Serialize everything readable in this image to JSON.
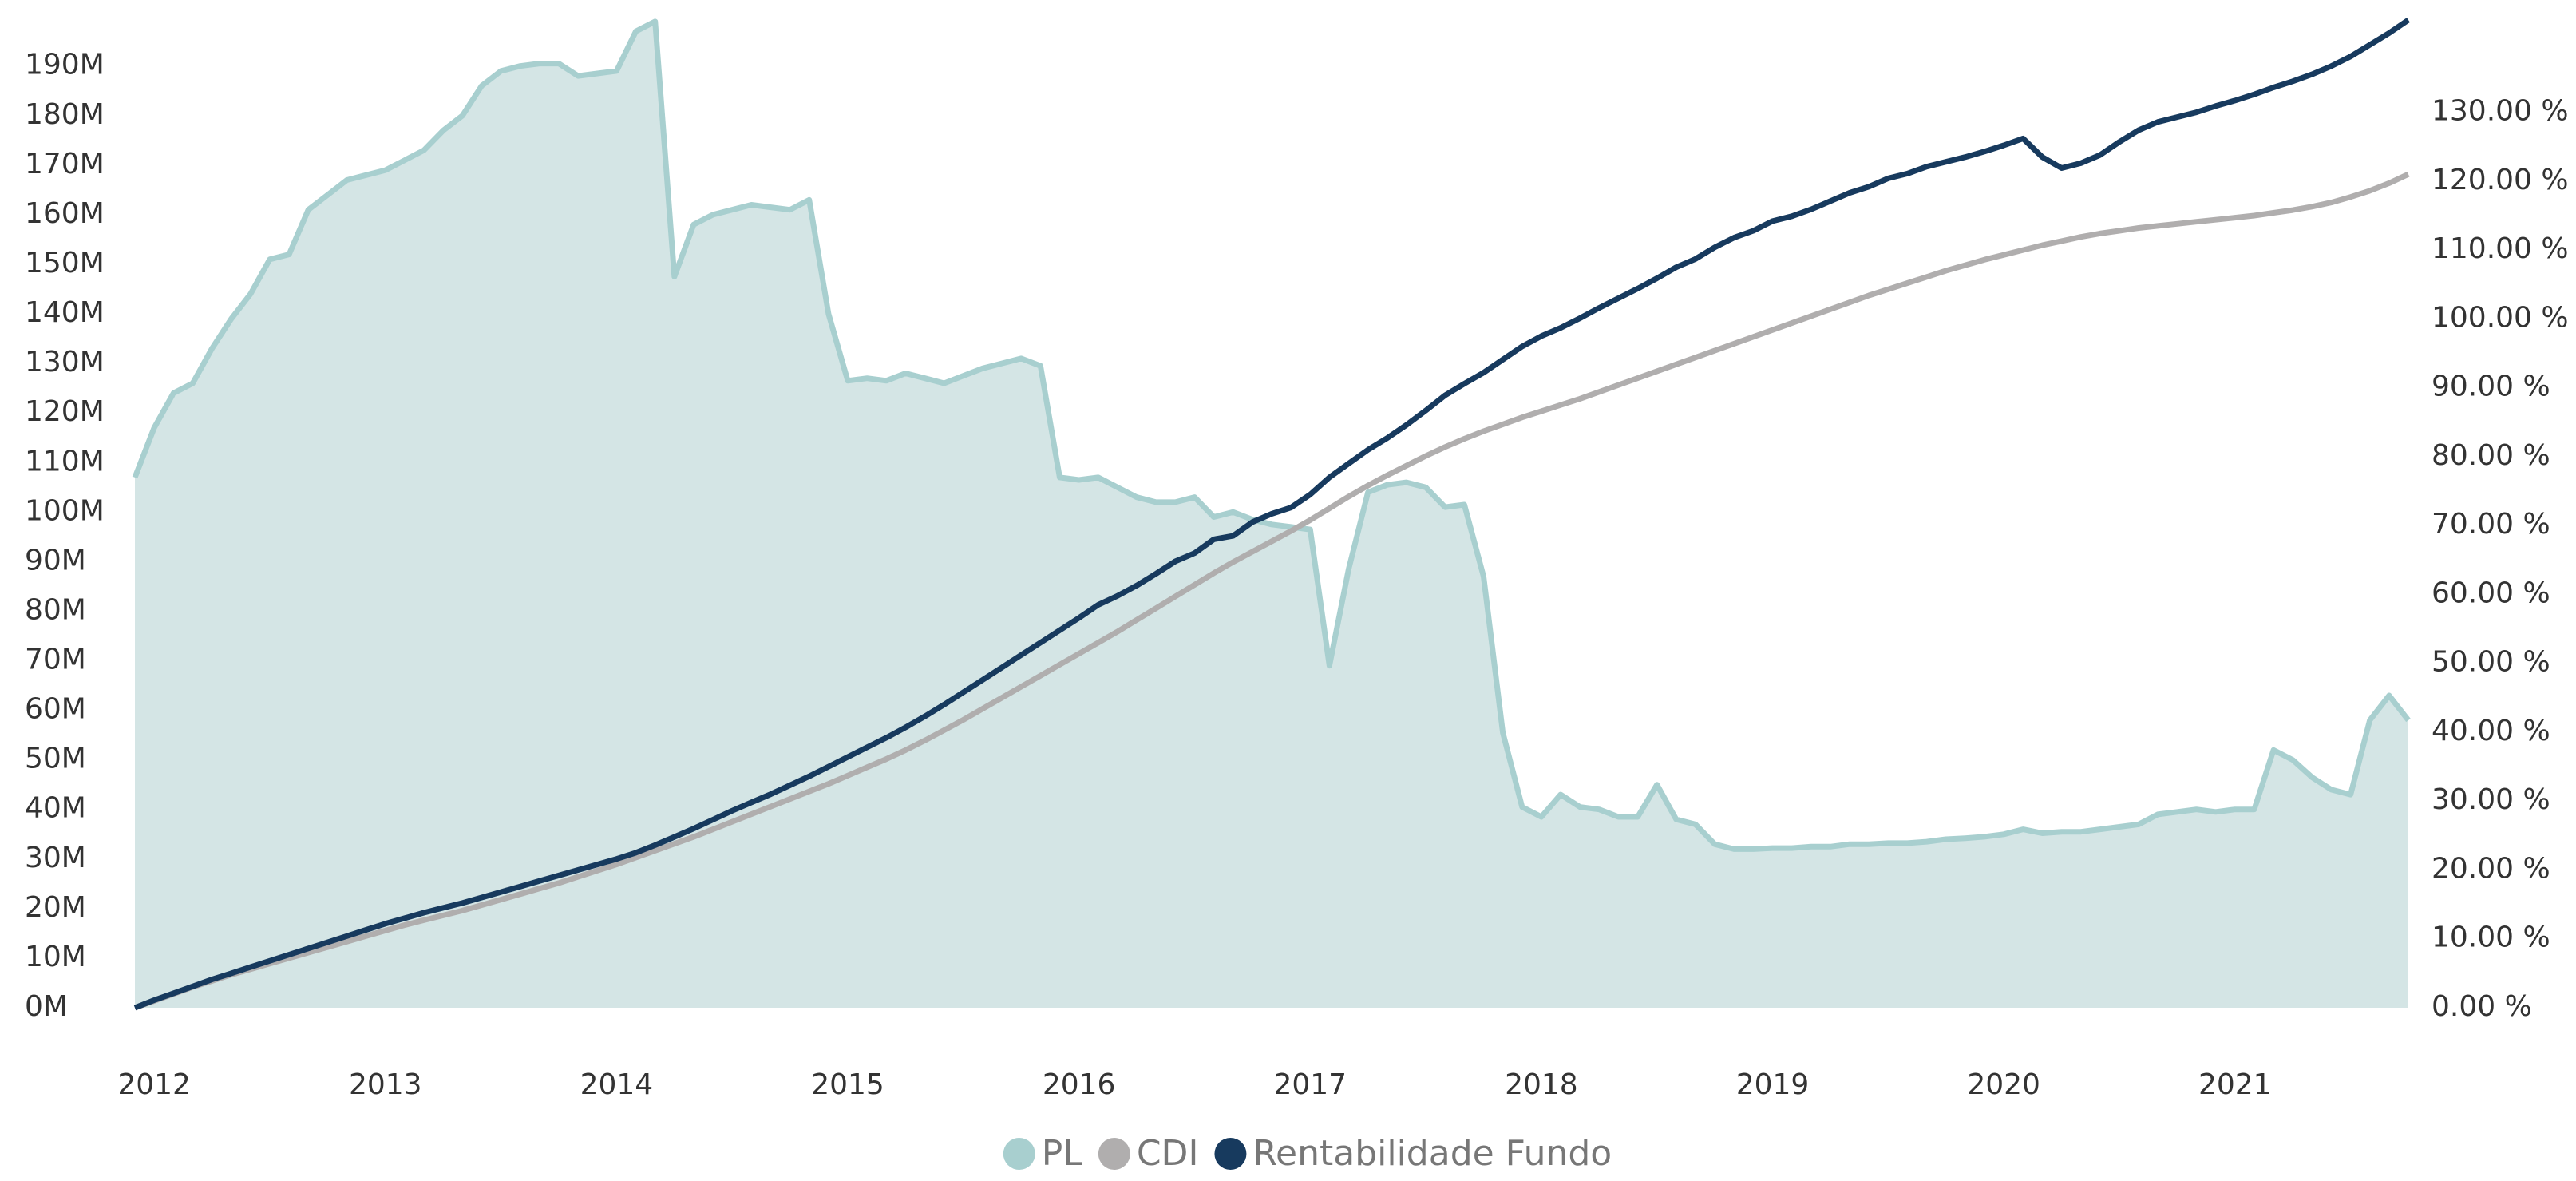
{
  "chart_data": {
    "type": "area-line",
    "categories": [
      null,
      "2012",
      null,
      null,
      null,
      null,
      null,
      null,
      null,
      null,
      null,
      null,
      null,
      "2013",
      null,
      null,
      null,
      null,
      null,
      null,
      null,
      null,
      null,
      null,
      null,
      "2014",
      null,
      null,
      null,
      null,
      null,
      null,
      null,
      null,
      null,
      null,
      null,
      "2015",
      null,
      null,
      null,
      null,
      null,
      null,
      null,
      null,
      null,
      null,
      null,
      "2016",
      null,
      null,
      null,
      null,
      null,
      null,
      null,
      null,
      null,
      null,
      null,
      "2017",
      null,
      null,
      null,
      null,
      null,
      null,
      null,
      null,
      null,
      null,
      null,
      "2018",
      null,
      null,
      null,
      null,
      null,
      null,
      null,
      null,
      null,
      null,
      null,
      "2019",
      null,
      null,
      null,
      null,
      null,
      null,
      null,
      null,
      null,
      null,
      null,
      "2020",
      null,
      null,
      null,
      null,
      null,
      null,
      null,
      null,
      null,
      null,
      null,
      "2021",
      null,
      null,
      null,
      null,
      null,
      null,
      null,
      null,
      null
    ],
    "series": [
      {
        "name": "PL",
        "color": "#a8cfcf",
        "fill": "#d4e5e5",
        "values": [
          107,
          117,
          124,
          126,
          133,
          139,
          144,
          151,
          152,
          161,
          164,
          167,
          168,
          169,
          171,
          173,
          177,
          180,
          186,
          189,
          190,
          190.5,
          190.5,
          188,
          188.5,
          189,
          197,
          199,
          147.5,
          158,
          160,
          161,
          162,
          161.5,
          161,
          163,
          140,
          126.5,
          127,
          126.5,
          128,
          127,
          126,
          127.5,
          129,
          130,
          131,
          129.5,
          107,
          106.5,
          107,
          105,
          103,
          102,
          102,
          103,
          99,
          100,
          98.5,
          97.5,
          97,
          96.5,
          69,
          88.5,
          104,
          105.5,
          106,
          105,
          101,
          101.5,
          87,
          55.5,
          40.5,
          38.5,
          43,
          40.5,
          40,
          38.5,
          38.5,
          45,
          38,
          37,
          33,
          32,
          32,
          32.2,
          32.2,
          32.5,
          32.5,
          33,
          33,
          33.2,
          33.2,
          33.5,
          34,
          34.2,
          34.5,
          35,
          36,
          35.2,
          35.5,
          35.5,
          36,
          36.5,
          37,
          39,
          39.5,
          40,
          39.5,
          40,
          40,
          52,
          50,
          46.5,
          44,
          43,
          58,
          63,
          58
        ]
      },
      {
        "name": "CDI",
        "color": "#b0aeae",
        "axis": "y2",
        "values": [
          0,
          1.0,
          2.0,
          3.0,
          3.9,
          4.8,
          5.6,
          6.4,
          7.2,
          8.0,
          8.8,
          9.6,
          10.4,
          11.2,
          12.0,
          12.7,
          13.4,
          14.1,
          14.9,
          15.7,
          16.5,
          17.3,
          18.1,
          19.0,
          19.9,
          20.8,
          21.8,
          22.8,
          23.8,
          24.8,
          25.9,
          27.0,
          28.1,
          29.2,
          30.3,
          31.4,
          32.5,
          33.7,
          34.9,
          36.1,
          37.4,
          38.8,
          40.3,
          41.8,
          43.4,
          45.0,
          46.6,
          48.2,
          49.8,
          51.4,
          53.0,
          54.6,
          56.3,
          58.0,
          59.7,
          61.4,
          63.1,
          64.7,
          66.2,
          67.7,
          69.2,
          70.8,
          72.5,
          74.2,
          75.8,
          77.3,
          78.7,
          80.1,
          81.4,
          82.6,
          83.7,
          84.7,
          85.7,
          86.6,
          87.5,
          88.4,
          89.4,
          90.4,
          91.4,
          92.4,
          93.4,
          94.4,
          95.4,
          96.4,
          97.4,
          98.4,
          99.4,
          100.4,
          101.4,
          102.4,
          103.4,
          104.3,
          105.2,
          106.1,
          107.0,
          107.8,
          108.6,
          109.3,
          110.0,
          110.7,
          111.3,
          111.9,
          112.4,
          112.8,
          113.2,
          113.5,
          113.8,
          114.1,
          114.4,
          114.7,
          115.0,
          115.4,
          115.8,
          116.3,
          116.9,
          117.7,
          118.6,
          119.7,
          121.0
        ]
      },
      {
        "name": "Rentabilidade Fundo",
        "color": "#173a5e",
        "axis": "y2",
        "values": [
          0,
          1.1,
          2.1,
          3.1,
          4.1,
          5.0,
          5.9,
          6.8,
          7.7,
          8.6,
          9.5,
          10.4,
          11.3,
          12.2,
          13.0,
          13.8,
          14.5,
          15.2,
          16.0,
          16.8,
          17.6,
          18.4,
          19.2,
          20.0,
          20.8,
          21.6,
          22.5,
          23.6,
          24.8,
          26.0,
          27.3,
          28.6,
          29.8,
          31.0,
          32.3,
          33.6,
          35.0,
          36.4,
          37.8,
          39.2,
          40.7,
          42.3,
          44.0,
          45.8,
          47.6,
          49.4,
          51.2,
          53.0,
          54.8,
          56.6,
          58.5,
          59.8,
          61.3,
          63.0,
          64.8,
          66.0,
          68.0,
          68.5,
          70.5,
          71.7,
          72.6,
          74.5,
          77,
          79,
          81,
          82.7,
          84.6,
          86.7,
          88.9,
          90.6,
          92.2,
          94.1,
          96,
          97.5,
          98.7,
          100.1,
          101.6,
          103,
          104.4,
          105.9,
          107.5,
          108.7,
          110.4,
          111.8,
          112.8,
          114.2,
          114.9,
          115.9,
          117.1,
          118.3,
          119.2,
          120.4,
          121.1,
          122.1,
          122.8,
          123.5,
          124.3,
          125.2,
          126.2,
          123.5,
          121.9,
          122.6,
          123.8,
          125.7,
          127.4,
          128.6,
          129.3,
          130,
          130.9,
          131.7,
          132.6,
          133.6,
          134.5,
          135.5,
          136.7,
          138.1,
          139.8,
          141.5,
          143.4
        ]
      }
    ],
    "ylim": [
      0,
      199.3
    ],
    "yticks": [
      {
        "value": 0,
        "label": "0M"
      },
      {
        "value": 10,
        "label": "10M"
      },
      {
        "value": 20,
        "label": "20M"
      },
      {
        "value": 30,
        "label": "30M"
      },
      {
        "value": 40,
        "label": "40M"
      },
      {
        "value": 50,
        "label": "50M"
      },
      {
        "value": 60,
        "label": "60M"
      },
      {
        "value": 70,
        "label": "70M"
      },
      {
        "value": 80,
        "label": "80M"
      },
      {
        "value": 90,
        "label": "90M"
      },
      {
        "value": 100,
        "label": "100M"
      },
      {
        "value": 110,
        "label": "110M"
      },
      {
        "value": 120,
        "label": "120M"
      },
      {
        "value": 130,
        "label": "130M"
      },
      {
        "value": 140,
        "label": "140M"
      },
      {
        "value": 150,
        "label": "150M"
      },
      {
        "value": 160,
        "label": "160M"
      },
      {
        "value": 170,
        "label": "170M"
      },
      {
        "value": 180,
        "label": "180M"
      },
      {
        "value": 190,
        "label": "190M"
      }
    ],
    "y2lim": [
      0,
      143.4
    ],
    "y2ticks": [
      {
        "value": 0,
        "label": "0.00 %"
      },
      {
        "value": 10,
        "label": "10.00 %"
      },
      {
        "value": 20,
        "label": "20.00 %"
      },
      {
        "value": 30,
        "label": "30.00 %"
      },
      {
        "value": 40,
        "label": "40.00 %"
      },
      {
        "value": 50,
        "label": "50.00 %"
      },
      {
        "value": 60,
        "label": "60.00 %"
      },
      {
        "value": 70,
        "label": "70.00 %"
      },
      {
        "value": 80,
        "label": "80.00 %"
      },
      {
        "value": 90,
        "label": "90.00 %"
      },
      {
        "value": 100,
        "label": "100.00 %"
      },
      {
        "value": 110,
        "label": "110.00 %"
      },
      {
        "value": 120,
        "label": "120.00 %"
      },
      {
        "value": 130,
        "label": "130.00 %"
      }
    ],
    "grid": false,
    "legend": "bottom"
  }
}
